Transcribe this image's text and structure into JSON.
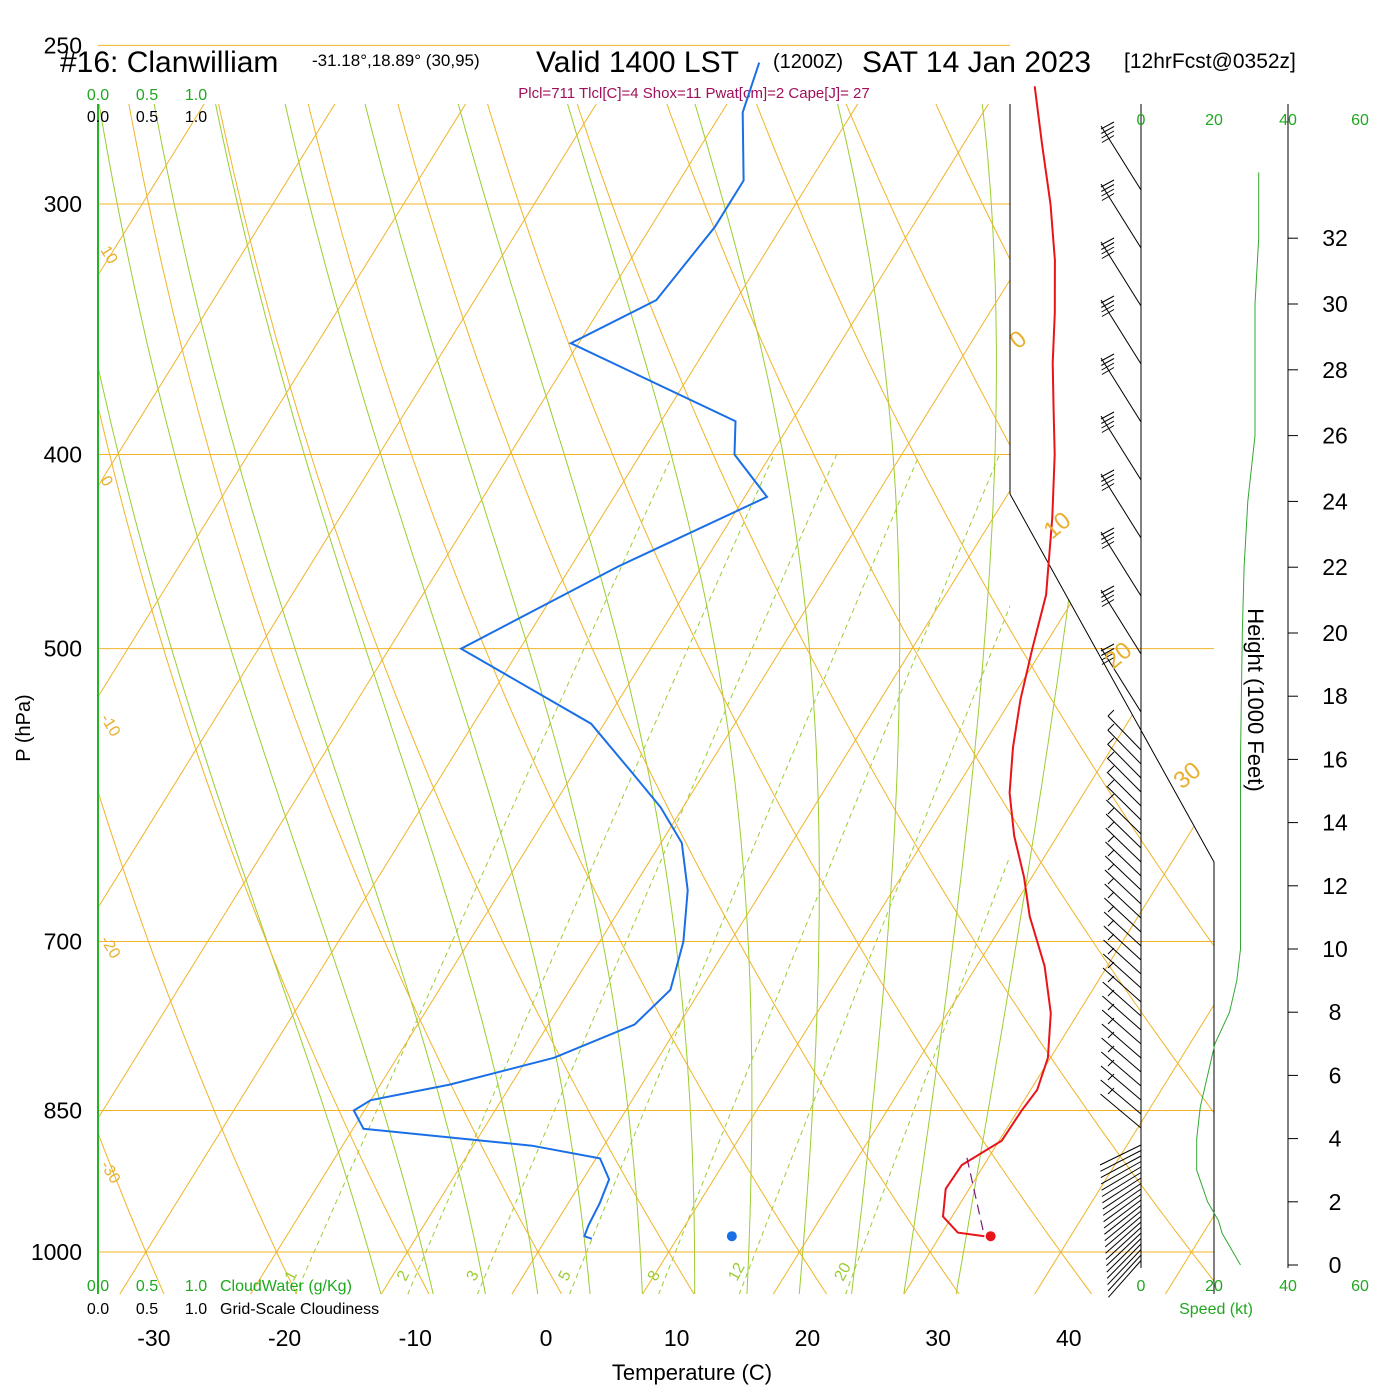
{
  "title": {
    "station": "#16: Clanwilliam",
    "coords": "-31.18°,18.89° (30,95)",
    "valid": "Valid 1400 LST",
    "utc": "(1200Z)",
    "date": "SAT 14 Jan 2023",
    "forecast": "[12hrFcst@0352z]"
  },
  "indices": "Plcl=711 Tlcl[C]=4 Shox=11 Pwat[cm]=2 Cape[J]= 27",
  "chart_data": {
    "type": "line",
    "subtype": "skew-T log-P sounding",
    "xlabel": "Temperature (C)",
    "ylabel": "P (hPa)",
    "right_axis_label": "Height (1000 Feet)",
    "x_ticks": [
      "-30",
      "-20",
      "-10",
      "0",
      "10",
      "20",
      "30",
      "40"
    ],
    "pressure_ticks": [
      "250",
      "300",
      "400",
      "500",
      "700",
      "850",
      "1000"
    ],
    "height_ticks": [
      "0",
      "2",
      "4",
      "6",
      "8",
      "10",
      "12",
      "14",
      "16",
      "18",
      "20",
      "22",
      "24",
      "26",
      "28",
      "30",
      "32"
    ],
    "dry_adiabat_labels": [
      "-30",
      "-20",
      "-10",
      "0",
      "10",
      "20",
      "30"
    ],
    "isotherm_labels_left": [
      "10",
      "0",
      "-10",
      "-20",
      "-30"
    ],
    "mixing_ratio_labels": [
      "1",
      "2",
      "3",
      "5",
      "8",
      "12",
      "20"
    ],
    "top_scale_green": [
      "0.0",
      "0.5",
      "1.0"
    ],
    "top_scale_black": [
      "0.0",
      "0.5",
      "1.0"
    ],
    "bottom_scale_green": [
      "0.0",
      "0.5",
      "1.0"
    ],
    "bottom_scale_black": [
      "0.0",
      "0.5",
      "1.0"
    ],
    "cloudwater_label": "CloudWater (g/Kg)",
    "cloudiness_label": "Grid-Scale Cloudiness",
    "wind_speed_ticks": [
      "0",
      "20",
      "40",
      "60"
    ],
    "wind_speed_label": "Speed (kt)",
    "series": [
      {
        "name": "Temperature",
        "color": "#e8141a",
        "points": [
          [
            982,
            33.4
          ],
          [
            978,
            31.2
          ],
          [
            960,
            29.3
          ],
          [
            930,
            28.2
          ],
          [
            905,
            28.3
          ],
          [
            880,
            30.2
          ],
          [
            850,
            30.3
          ],
          [
            830,
            30.5
          ],
          [
            800,
            29.8
          ],
          [
            760,
            27.9
          ],
          [
            720,
            25.2
          ],
          [
            680,
            21.7
          ],
          [
            650,
            19.4
          ],
          [
            620,
            16.7
          ],
          [
            590,
            14.3
          ],
          [
            560,
            12.4
          ],
          [
            530,
            10.7
          ],
          [
            500,
            9.2
          ],
          [
            470,
            7.7
          ],
          [
            430,
            4.5
          ],
          [
            400,
            1.7
          ],
          [
            380,
            -0.5
          ],
          [
            360,
            -2.8
          ],
          [
            340,
            -5.0
          ],
          [
            320,
            -7.5
          ],
          [
            300,
            -10.5
          ],
          [
            280,
            -14.0
          ],
          [
            262,
            -17.3
          ]
        ]
      },
      {
        "name": "Dewpoint",
        "color": "#1a6fe6",
        "points": [
          [
            985,
            3.5
          ],
          [
            982,
            2.8
          ],
          [
            970,
            2.6
          ],
          [
            945,
            2.4
          ],
          [
            920,
            2.0
          ],
          [
            898,
            0.3
          ],
          [
            885,
            -5.5
          ],
          [
            868,
            -19.2
          ],
          [
            850,
            -20.8
          ],
          [
            840,
            -20.0
          ],
          [
            825,
            -14.7
          ],
          [
            800,
            -8.0
          ],
          [
            770,
            -3.4
          ],
          [
            740,
            -2.3
          ],
          [
            700,
            -3.6
          ],
          [
            660,
            -5.7
          ],
          [
            625,
            -8.4
          ],
          [
            600,
            -11.7
          ],
          [
            575,
            -15.8
          ],
          [
            545,
            -21.0
          ],
          [
            500,
            -34.5
          ],
          [
            455,
            -26.4
          ],
          [
            420,
            -18.3
          ],
          [
            400,
            -22.8
          ],
          [
            385,
            -24.3
          ],
          [
            352,
            -40.6
          ],
          [
            335,
            -36.1
          ],
          [
            308,
            -35.1
          ],
          [
            292,
            -35.1
          ],
          [
            270,
            -38.4
          ],
          [
            255,
            -39.5
          ]
        ]
      },
      {
        "name": "Surface parcel path",
        "color": "#7a1a7a",
        "points": [
          [
            975,
            33.0
          ],
          [
            895,
            28.2
          ]
        ]
      }
    ],
    "surface_markers": {
      "dewpoint_c": 15.0,
      "temperature_c": 34.8,
      "pressure_hpa": 982
    },
    "cloudiness_profile_kt": [
      [
        0,
        13
      ],
      [
        1,
        8
      ],
      [
        1.4,
        7
      ],
      [
        2,
        4
      ],
      [
        3,
        1
      ],
      [
        4,
        1
      ],
      [
        5,
        2
      ],
      [
        6,
        4
      ],
      [
        7,
        6
      ],
      [
        8,
        10
      ],
      [
        9,
        12
      ],
      [
        10,
        13
      ],
      [
        12,
        13
      ],
      [
        14,
        13
      ],
      [
        16,
        13
      ],
      [
        20,
        13.5
      ],
      [
        22,
        14
      ],
      [
        24,
        15
      ],
      [
        26,
        17
      ],
      [
        28,
        17
      ],
      [
        30,
        17
      ],
      [
        32,
        18
      ],
      [
        34,
        18
      ]
    ],
    "x_range_c": [
      -34,
      36
    ],
    "pressure_range_hpa": [
      250,
      1050
    ]
  }
}
